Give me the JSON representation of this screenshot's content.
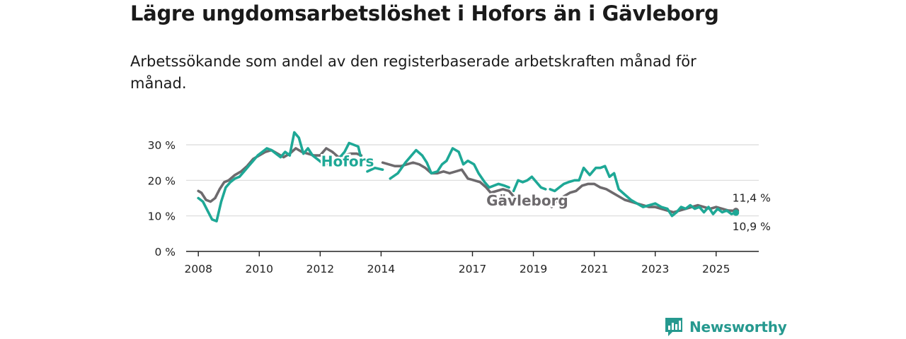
{
  "header": {
    "title": "Lägre ungdomsarbetslöshet i Hofors än i Gävleborg",
    "subtitle": "Arbetssökande som andel av den registerbaserade arbetskraften månad för månad."
  },
  "brand": {
    "name": "Newsworthy",
    "color": "#26998f"
  },
  "colors": {
    "hofors": "#1ea896",
    "gavleborg": "#6d6a6d",
    "grid": "#d9d9d9",
    "axis": "#222222"
  },
  "chart_data": {
    "type": "line",
    "title": "Lägre ungdomsarbetslöshet i Hofors än i Gävleborg",
    "xlabel": "",
    "ylabel": "",
    "xlim": [
      2007.6,
      2026.4
    ],
    "ylim": [
      0,
      30
    ],
    "y_ticks": [
      0,
      10,
      20,
      30
    ],
    "y_tick_labels": [
      "0 %",
      "10 %",
      "20 %",
      "30 %"
    ],
    "x_ticks": [
      2008,
      2010,
      2012,
      2014,
      2017,
      2019,
      2021,
      2023,
      2025
    ],
    "x_tick_labels": [
      "2008",
      "2010",
      "2012",
      "2014",
      "2017",
      "2019",
      "2021",
      "2023",
      "2025"
    ],
    "grid": true,
    "series": [
      {
        "name": "Hofors",
        "color": "#1ea896",
        "points": [
          [
            2008.0,
            15.0
          ],
          [
            2008.15,
            14.0
          ],
          [
            2008.3,
            11.5
          ],
          [
            2008.45,
            9.0
          ],
          [
            2008.6,
            8.5
          ],
          [
            2008.75,
            14.0
          ],
          [
            2008.9,
            18.0
          ],
          [
            2009.05,
            19.5
          ],
          [
            2009.2,
            20.5
          ],
          [
            2009.35,
            21.0
          ],
          [
            2009.5,
            22.5
          ],
          [
            2009.65,
            24.0
          ],
          [
            2009.8,
            25.5
          ],
          [
            2009.95,
            27.0
          ],
          [
            2010.1,
            28.0
          ],
          [
            2010.25,
            29.0
          ],
          [
            2010.4,
            28.5
          ],
          [
            2010.55,
            27.5
          ],
          [
            2010.7,
            26.5
          ],
          [
            2010.85,
            28.0
          ],
          [
            2011.0,
            27.0
          ],
          [
            2011.15,
            33.5
          ],
          [
            2011.3,
            32.0
          ],
          [
            2011.45,
            27.5
          ],
          [
            2011.6,
            29.0
          ],
          [
            2011.75,
            27.0
          ],
          [
            2011.9,
            26.0
          ],
          [
            2012.05,
            25.0
          ],
          [
            2012.2,
            24.5
          ],
          [
            2012.35,
            25.5
          ],
          [
            2012.5,
            25.0
          ],
          [
            2012.65,
            26.5
          ],
          [
            2012.8,
            28.0
          ],
          [
            2012.95,
            30.5
          ],
          [
            2013.1,
            30.0
          ],
          [
            2013.25,
            29.5
          ],
          [
            2013.35,
            26.0
          ],
          [
            2013.55,
            22.5
          ],
          [
            2013.8,
            23.5
          ],
          [
            2014.05,
            23.0
          ],
          [
            2014.3,
            20.5
          ],
          [
            2014.55,
            22.0
          ],
          [
            2014.8,
            25.0
          ],
          [
            2015.0,
            27.0
          ],
          [
            2015.15,
            28.5
          ],
          [
            2015.35,
            27.0
          ],
          [
            2015.5,
            25.0
          ],
          [
            2015.65,
            22.0
          ],
          [
            2015.85,
            22.5
          ],
          [
            2016.0,
            24.5
          ],
          [
            2016.15,
            25.5
          ],
          [
            2016.35,
            29.0
          ],
          [
            2016.55,
            28.0
          ],
          [
            2016.7,
            24.5
          ],
          [
            2016.85,
            25.5
          ],
          [
            2017.05,
            24.5
          ],
          [
            2017.2,
            22.0
          ],
          [
            2017.4,
            19.5
          ],
          [
            2017.55,
            18.0
          ],
          [
            2017.7,
            18.5
          ],
          [
            2017.85,
            19.0
          ],
          [
            2018.05,
            18.5
          ],
          [
            2018.2,
            18.0
          ],
          [
            2018.35,
            17.0
          ],
          [
            2018.5,
            20.0
          ],
          [
            2018.65,
            19.5
          ],
          [
            2018.8,
            20.0
          ],
          [
            2018.95,
            21.0
          ],
          [
            2019.1,
            19.5
          ],
          [
            2019.25,
            18.0
          ],
          [
            2019.4,
            17.5
          ],
          [
            2019.55,
            17.5
          ],
          [
            2019.7,
            17.0
          ],
          [
            2019.85,
            18.0
          ],
          [
            2020.0,
            19.0
          ],
          [
            2020.15,
            19.5
          ],
          [
            2020.35,
            20.0
          ],
          [
            2020.5,
            20.0
          ],
          [
            2020.65,
            23.5
          ],
          [
            2020.85,
            21.5
          ],
          [
            2021.05,
            23.5
          ],
          [
            2021.2,
            23.5
          ],
          [
            2021.35,
            24.0
          ],
          [
            2021.5,
            21.0
          ],
          [
            2021.65,
            22.0
          ],
          [
            2021.8,
            17.5
          ],
          [
            2022.0,
            16.0
          ],
          [
            2022.2,
            14.5
          ],
          [
            2022.4,
            13.5
          ],
          [
            2022.6,
            12.5
          ],
          [
            2022.8,
            13.0
          ],
          [
            2023.0,
            13.5
          ],
          [
            2023.2,
            12.5
          ],
          [
            2023.4,
            12.0
          ],
          [
            2023.55,
            10.0
          ],
          [
            2023.7,
            11.0
          ],
          [
            2023.85,
            12.5
          ],
          [
            2024.0,
            12.0
          ],
          [
            2024.15,
            13.0
          ],
          [
            2024.3,
            12.0
          ],
          [
            2024.45,
            12.5
          ],
          [
            2024.6,
            11.0
          ],
          [
            2024.75,
            12.5
          ],
          [
            2024.9,
            10.5
          ],
          [
            2025.05,
            12.0
          ],
          [
            2025.2,
            11.0
          ],
          [
            2025.35,
            11.5
          ],
          [
            2025.5,
            10.5
          ],
          [
            2025.65,
            10.9
          ]
        ],
        "gaps_after_x": [
          2013.35,
          2014.05,
          2018.2,
          2019.4
        ]
      },
      {
        "name": "Gävleborg",
        "color": "#6d6a6d",
        "points": [
          [
            2008.0,
            17.0
          ],
          [
            2008.1,
            16.5
          ],
          [
            2008.25,
            14.5
          ],
          [
            2008.4,
            14.0
          ],
          [
            2008.55,
            15.0
          ],
          [
            2008.7,
            17.5
          ],
          [
            2008.85,
            19.5
          ],
          [
            2009.0,
            20.0
          ],
          [
            2009.2,
            21.5
          ],
          [
            2009.4,
            22.5
          ],
          [
            2009.6,
            24.0
          ],
          [
            2009.8,
            26.0
          ],
          [
            2010.0,
            27.0
          ],
          [
            2010.2,
            28.0
          ],
          [
            2010.4,
            28.5
          ],
          [
            2010.6,
            27.5
          ],
          [
            2010.8,
            26.5
          ],
          [
            2011.0,
            27.5
          ],
          [
            2011.2,
            29.0
          ],
          [
            2011.4,
            28.0
          ],
          [
            2011.6,
            27.5
          ],
          [
            2011.8,
            27.0
          ],
          [
            2012.0,
            27.0
          ],
          [
            2012.2,
            29.0
          ],
          [
            2012.4,
            28.0
          ],
          [
            2012.6,
            26.5
          ],
          [
            2012.8,
            27.0
          ],
          [
            2013.0,
            27.5
          ],
          [
            2013.2,
            27.5
          ],
          [
            2013.35,
            27.0
          ],
          [
            2014.05,
            25.0
          ],
          [
            2014.25,
            24.5
          ],
          [
            2014.45,
            24.0
          ],
          [
            2014.65,
            24.0
          ],
          [
            2014.85,
            24.5
          ],
          [
            2015.05,
            25.0
          ],
          [
            2015.25,
            24.5
          ],
          [
            2015.45,
            23.5
          ],
          [
            2015.65,
            22.0
          ],
          [
            2015.85,
            22.0
          ],
          [
            2016.05,
            22.5
          ],
          [
            2016.25,
            22.0
          ],
          [
            2016.45,
            22.5
          ],
          [
            2016.65,
            23.0
          ],
          [
            2016.85,
            20.5
          ],
          [
            2017.05,
            20.0
          ],
          [
            2017.25,
            19.5
          ],
          [
            2017.45,
            18.0
          ],
          [
            2017.6,
            16.5
          ],
          [
            2017.8,
            17.0
          ],
          [
            2018.0,
            17.5
          ],
          [
            2018.2,
            17.0
          ],
          [
            2018.35,
            15.5
          ],
          [
            2018.55,
            14.0
          ],
          [
            2018.65,
            13.5
          ],
          [
            2019.6,
            12.5
          ],
          [
            2019.8,
            14.5
          ],
          [
            2020.0,
            15.5
          ],
          [
            2020.2,
            16.5
          ],
          [
            2020.4,
            17.0
          ],
          [
            2020.6,
            18.5
          ],
          [
            2020.8,
            19.0
          ],
          [
            2021.0,
            19.0
          ],
          [
            2021.2,
            18.0
          ],
          [
            2021.4,
            17.5
          ],
          [
            2021.6,
            16.5
          ],
          [
            2021.8,
            15.5
          ],
          [
            2022.0,
            14.5
          ],
          [
            2022.2,
            14.0
          ],
          [
            2022.4,
            13.5
          ],
          [
            2022.6,
            13.0
          ],
          [
            2022.8,
            12.5
          ],
          [
            2023.0,
            12.5
          ],
          [
            2023.2,
            12.0
          ],
          [
            2023.4,
            11.5
          ],
          [
            2023.6,
            11.0
          ],
          [
            2023.8,
            11.5
          ],
          [
            2024.0,
            12.0
          ],
          [
            2024.2,
            12.5
          ],
          [
            2024.4,
            13.0
          ],
          [
            2024.6,
            12.5
          ],
          [
            2024.8,
            12.0
          ],
          [
            2025.0,
            12.5
          ],
          [
            2025.2,
            12.0
          ],
          [
            2025.4,
            11.5
          ],
          [
            2025.65,
            11.4
          ]
        ],
        "gaps_after_x": [
          2013.35,
          2018.65
        ]
      }
    ],
    "series_labels": [
      {
        "text": "Hofors",
        "series": "Hofors",
        "x": 2012.9,
        "y": 25.5
      },
      {
        "text": "Gävleborg",
        "series": "Gävleborg",
        "x": 2018.8,
        "y": 14.5
      }
    ],
    "end_labels": [
      {
        "text": "11,4 %",
        "series": "Gävleborg"
      },
      {
        "text": "10,9 %",
        "series": "Hofors"
      }
    ]
  }
}
